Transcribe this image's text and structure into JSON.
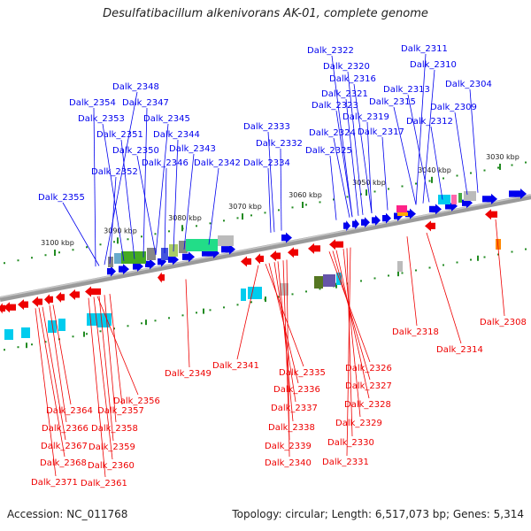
{
  "title": "Desulfatibacillum alkenivorans AK-01, complete genome",
  "accession": "Accession: NC_011768",
  "summary": "Topology: circular; Length: 6,517,073 bp; Genes: 5,314",
  "colors": {
    "forward": "#0000ee",
    "reverse": "#ee0000",
    "backbone": "#888888",
    "tick": "#228b22"
  },
  "scale_labels": [
    "3030 kbp",
    "3040 kbp",
    "3050 kbp",
    "3060 kbp",
    "3070 kbp",
    "3080 kbp",
    "3090 kbp",
    "3100 kbp"
  ],
  "top_genes": [
    "Dalk_2322",
    "Dalk_2311",
    "Dalk_2320",
    "Dalk_2310",
    "Dalk_2316",
    "Dalk_2304",
    "Dalk_2348",
    "Dalk_2321",
    "Dalk_2313",
    "Dalk_2354",
    "Dalk_2347",
    "Dalk_2323",
    "Dalk_2315",
    "Dalk_2309",
    "Dalk_2353",
    "Dalk_2345",
    "Dalk_2319",
    "Dalk_2312",
    "Dalk_2333",
    "Dalk_2351",
    "Dalk_2344",
    "Dalk_2324",
    "Dalk_2317",
    "Dalk_2332",
    "Dalk_2350",
    "Dalk_2343",
    "Dalk_2325",
    "Dalk_2334",
    "Dalk_2346",
    "Dalk_2342",
    "Dalk_2352",
    "Dalk_2355"
  ],
  "bottom_genes": [
    "Dalk_2318",
    "Dalk_2308",
    "Dalk_2314",
    "Dalk_2341",
    "Dalk_2349",
    "Dalk_2335",
    "Dalk_2326",
    "Dalk_2356",
    "Dalk_2336",
    "Dalk_2327",
    "Dalk_2364",
    "Dalk_2357",
    "Dalk_2337",
    "Dalk_2328",
    "Dalk_2366",
    "Dalk_2358",
    "Dalk_2338",
    "Dalk_2329",
    "Dalk_2367",
    "Dalk_2359",
    "Dalk_2339",
    "Dalk_2330",
    "Dalk_2368",
    "Dalk_2360",
    "Dalk_2340",
    "Dalk_2331",
    "Dalk_2371",
    "Dalk_2361"
  ]
}
